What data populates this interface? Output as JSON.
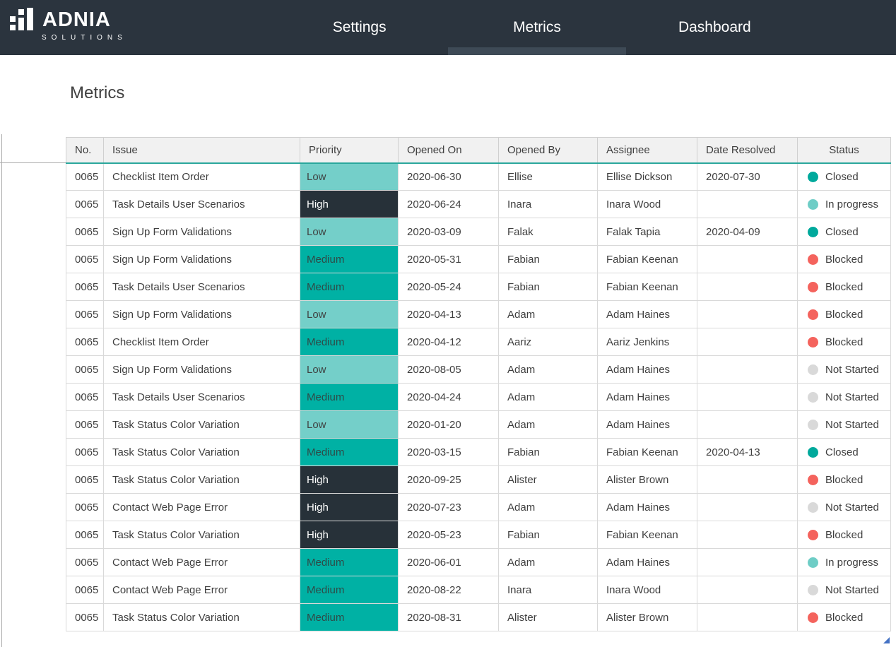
{
  "navbar": {
    "logo": {
      "brand": "ADNIA",
      "sub": "SOLUTIONS"
    },
    "items": [
      {
        "label": "Settings",
        "active": false
      },
      {
        "label": "Metrics",
        "active": true
      },
      {
        "label": "Dashboard",
        "active": false
      }
    ]
  },
  "page": {
    "title": "Metrics"
  },
  "table": {
    "columns": [
      "No.",
      "Issue",
      "Priority",
      "Opened On",
      "Opened By",
      "Assignee",
      "Date Resolved",
      "Status"
    ],
    "rows": [
      {
        "no": "0065",
        "issue": "Checklist Item Order",
        "priority": "Low",
        "opened_on": "2020-06-30",
        "opened_by": "Ellise",
        "assignee": "Ellise Dickson",
        "date_resolved": "2020-07-30",
        "status": "Closed"
      },
      {
        "no": "0065",
        "issue": "Task Details User Scenarios",
        "priority": "High",
        "opened_on": "2020-06-24",
        "opened_by": "Inara",
        "assignee": "Inara Wood",
        "date_resolved": "",
        "status": "In progress"
      },
      {
        "no": "0065",
        "issue": "Sign Up Form Validations",
        "priority": "Low",
        "opened_on": "2020-03-09",
        "opened_by": "Falak",
        "assignee": "Falak Tapia",
        "date_resolved": "2020-04-09",
        "status": "Closed"
      },
      {
        "no": "0065",
        "issue": "Sign Up Form Validations",
        "priority": "Medium",
        "opened_on": "2020-05-31",
        "opened_by": "Fabian",
        "assignee": "Fabian Keenan",
        "date_resolved": "",
        "status": "Blocked"
      },
      {
        "no": "0065",
        "issue": "Task Details User Scenarios",
        "priority": "Medium",
        "opened_on": "2020-05-24",
        "opened_by": "Fabian",
        "assignee": "Fabian Keenan",
        "date_resolved": "",
        "status": "Blocked"
      },
      {
        "no": "0065",
        "issue": "Sign Up Form Validations",
        "priority": "Low",
        "opened_on": "2020-04-13",
        "opened_by": "Adam",
        "assignee": "Adam Haines",
        "date_resolved": "",
        "status": "Blocked"
      },
      {
        "no": "0065",
        "issue": "Checklist Item Order",
        "priority": "Medium",
        "opened_on": "2020-04-12",
        "opened_by": "Aariz",
        "assignee": "Aariz Jenkins",
        "date_resolved": "",
        "status": "Blocked"
      },
      {
        "no": "0065",
        "issue": "Sign Up Form Validations",
        "priority": "Low",
        "opened_on": "2020-08-05",
        "opened_by": "Adam",
        "assignee": "Adam Haines",
        "date_resolved": "",
        "status": "Not Started"
      },
      {
        "no": "0065",
        "issue": "Task Details User Scenarios",
        "priority": "Medium",
        "opened_on": "2020-04-24",
        "opened_by": "Adam",
        "assignee": "Adam Haines",
        "date_resolved": "",
        "status": "Not Started"
      },
      {
        "no": "0065",
        "issue": "Task Status Color Variation",
        "priority": "Low",
        "opened_on": "2020-01-20",
        "opened_by": "Adam",
        "assignee": "Adam Haines",
        "date_resolved": "",
        "status": "Not Started"
      },
      {
        "no": "0065",
        "issue": "Task Status Color Variation",
        "priority": "Medium",
        "opened_on": "2020-03-15",
        "opened_by": "Fabian",
        "assignee": "Fabian Keenan",
        "date_resolved": "2020-04-13",
        "status": "Closed"
      },
      {
        "no": "0065",
        "issue": "Task Status Color Variation",
        "priority": "High",
        "opened_on": "2020-09-25",
        "opened_by": "Alister",
        "assignee": "Alister Brown",
        "date_resolved": "",
        "status": "Blocked"
      },
      {
        "no": "0065",
        "issue": "Contact Web Page Error",
        "priority": "High",
        "opened_on": "2020-07-23",
        "opened_by": "Adam",
        "assignee": "Adam Haines",
        "date_resolved": "",
        "status": "Not Started"
      },
      {
        "no": "0065",
        "issue": "Task Status Color Variation",
        "priority": "High",
        "opened_on": "2020-05-23",
        "opened_by": "Fabian",
        "assignee": "Fabian Keenan",
        "date_resolved": "",
        "status": "Blocked"
      },
      {
        "no": "0065",
        "issue": "Contact Web Page Error",
        "priority": "Medium",
        "opened_on": "2020-06-01",
        "opened_by": "Adam",
        "assignee": "Adam Haines",
        "date_resolved": "",
        "status": "In progress"
      },
      {
        "no": "0065",
        "issue": "Contact Web Page Error",
        "priority": "Medium",
        "opened_on": "2020-08-22",
        "opened_by": "Inara",
        "assignee": "Inara Wood",
        "date_resolved": "",
        "status": "Not Started"
      },
      {
        "no": "0065",
        "issue": "Task Status Color Variation",
        "priority": "Medium",
        "opened_on": "2020-08-31",
        "opened_by": "Alister",
        "assignee": "Alister Brown",
        "date_resolved": "",
        "status": "Blocked"
      }
    ]
  },
  "colors": {
    "navbar_bg": "#2b343e",
    "active_tab_indicator": "#3e4a56",
    "header_underline": "#2aa79c",
    "priority_bg": {
      "Low": "#74cfc9",
      "Medium": "#00b1a4",
      "High": "#273139"
    },
    "priority_text": {
      "Low": "#3f4242",
      "Medium": "#2e4a47",
      "High": "#ffffff"
    },
    "status_dot": {
      "Closed": "#00a99c",
      "In progress": "#6ecdc6",
      "Blocked": "#f4635d",
      "Not Started": "#d9d9d9"
    }
  }
}
